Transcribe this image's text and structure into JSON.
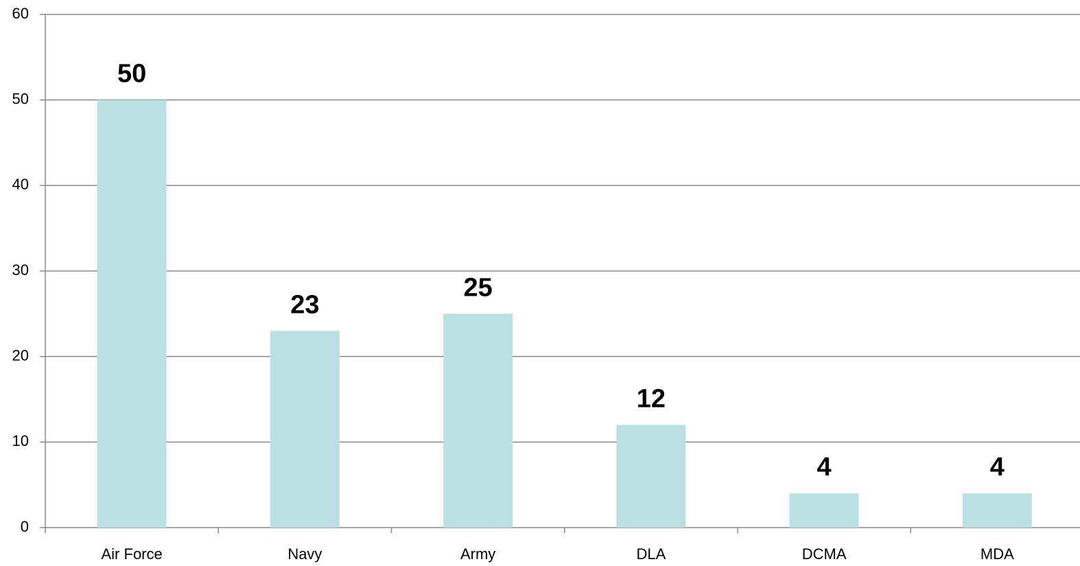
{
  "chart_data": {
    "type": "bar",
    "categories": [
      "Air Force",
      "Navy",
      "Army",
      "DLA",
      "DCMA",
      "MDA"
    ],
    "values": [
      50,
      23,
      25,
      12,
      4,
      4
    ],
    "color": "#b9e0e3",
    "ylim": [
      0,
      60
    ],
    "yticks": [
      0,
      10,
      20,
      30,
      40,
      50,
      60
    ],
    "grid": true
  }
}
